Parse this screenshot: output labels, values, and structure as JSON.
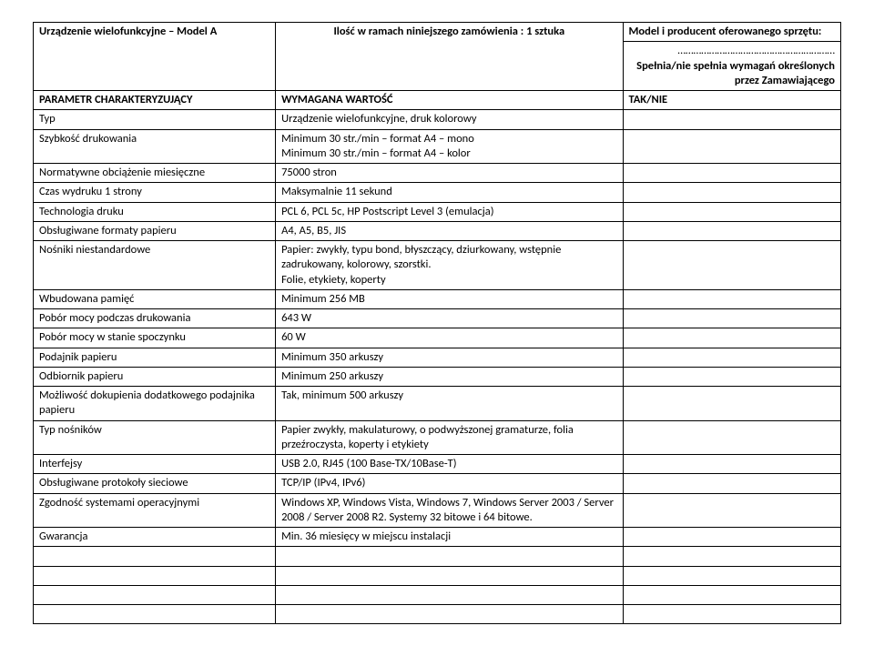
{
  "header": {
    "title_col1": "Urządzenie wielofunkcyjne – Model A",
    "title_col2": "Ilość w ramach niniejszego zamówienia : 1 sztuka",
    "title_col3": "Model i producent oferowanego sprzętu:",
    "dots": "……………………………………………………",
    "meets": "Spełnia/nie spełnia wymagań określonych przez Zamawiającego"
  },
  "colheaders": {
    "c1": "PARAMETR CHARAKTERYZUJĄCY",
    "c2": "WYMAGANA WARTOŚĆ",
    "c3": "TAK/NIE"
  },
  "rows": [
    {
      "p": "Typ",
      "v": "Urządzenie wielofunkcyjne, druk kolorowy"
    },
    {
      "p": "Szybkość drukowania",
      "v": "Minimum 30 str./min – format A4 – mono\nMinimum 30 str./min – format A4 – kolor"
    },
    {
      "p": "Normatywne obciążenie miesięczne",
      "v": "75000 stron"
    },
    {
      "p": "Czas wydruku 1 strony",
      "v": "Maksymalnie 11 sekund"
    },
    {
      "p": "Technologia druku",
      "v": "PCL 6, PCL 5c, HP Postscript Level 3 (emulacja)"
    },
    {
      "p": "Obsługiwane formaty papieru",
      "v": "A4, A5, B5, JIS"
    },
    {
      "p": "Nośniki niestandardowe",
      "v": "Papier: zwykły, typu bond, błyszczący, dziurkowany, wstępnie zadrukowany, kolorowy, szorstki.\nFolie, etykiety, koperty"
    },
    {
      "p": "Wbudowana pamięć",
      "v": "Minimum 256 MB"
    },
    {
      "p": "Pobór mocy podczas drukowania",
      "v": "643 W"
    },
    {
      "p": "Pobór mocy w stanie spoczynku",
      "v": "60 W"
    },
    {
      "p": "Podajnik papieru",
      "v": "Minimum 350 arkuszy"
    },
    {
      "p": "Odbiornik papieru",
      "v": "Minimum 250 arkuszy"
    },
    {
      "p": "Możliwość dokupienia dodatkowego podajnika papieru",
      "v": "Tak, minimum 500 arkuszy"
    },
    {
      "p": "Typ nośników",
      "v": "Papier zwykły, makulaturowy, o podwyższonej gramaturze, folia przeźroczysta, koperty i etykiety"
    },
    {
      "p": "Interfejsy",
      "v": "USB 2.0, RJ45 (100 Base-TX/10Base-T)"
    },
    {
      "p": "Obsługiwane protokoły sieciowe",
      "v": "TCP/IP (IPv4, IPv6)"
    },
    {
      "p": "Zgodność systemami operacyjnymi",
      "v": "Windows XP, Windows Vista, Windows 7, Windows Server 2003 / Server 2008 / Server 2008 R2. Systemy 32 bitowe i 64 bitowe."
    },
    {
      "p": "Gwarancja",
      "v": "Min. 36 miesięcy w miejscu instalacji"
    },
    {
      "p": "",
      "v": ""
    },
    {
      "p": "",
      "v": ""
    },
    {
      "p": "",
      "v": ""
    },
    {
      "p": "",
      "v": ""
    }
  ]
}
